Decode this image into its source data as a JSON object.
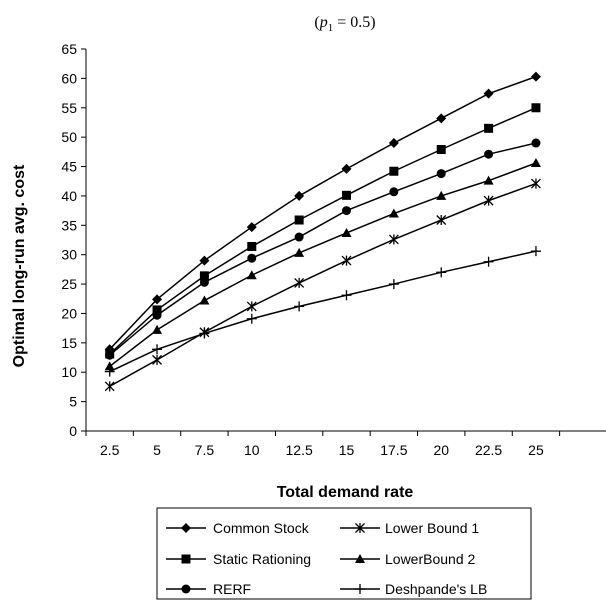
{
  "chart_data": {
    "type": "line",
    "title": "(p1 = 0.5)",
    "xlabel": "Total demand rate",
    "ylabel": "Optimal long-run avg. cost",
    "categories": [
      "2.5",
      "5",
      "7.5",
      "10",
      "12.5",
      "15",
      "17.5",
      "20",
      "22.5",
      "25"
    ],
    "ylim": [
      0,
      65
    ],
    "yticks": [
      0,
      5,
      10,
      15,
      20,
      25,
      30,
      35,
      40,
      45,
      50,
      55,
      60,
      65
    ],
    "grid": false,
    "legend_position": "bottom",
    "series": [
      {
        "name": "Common Stock",
        "marker": "diamond",
        "values": [
          13.9,
          22.4,
          29.0,
          34.7,
          40.0,
          44.6,
          49.0,
          53.2,
          57.4,
          60.3
        ]
      },
      {
        "name": "Lower Bound 1",
        "marker": "asterisk",
        "values": [
          7.6,
          12.1,
          16.8,
          21.2,
          25.2,
          29.0,
          32.6,
          35.9,
          39.2,
          42.1
        ]
      },
      {
        "name": "Static Rationing",
        "marker": "square",
        "values": [
          13.1,
          20.6,
          26.4,
          31.4,
          35.9,
          40.1,
          44.2,
          47.9,
          51.5,
          55.0
        ]
      },
      {
        "name": "LowerBound 2",
        "marker": "triangle",
        "values": [
          11.0,
          17.2,
          22.2,
          26.5,
          30.3,
          33.7,
          37.0,
          40.0,
          42.6,
          45.6
        ]
      },
      {
        "name": "RERF",
        "marker": "circle",
        "values": [
          12.9,
          19.7,
          25.3,
          29.4,
          33.0,
          37.5,
          40.7,
          43.8,
          47.1,
          49.0
        ]
      },
      {
        "name": "Deshpande's LB",
        "marker": "plus",
        "values": [
          10.1,
          13.9,
          16.6,
          19.1,
          21.2,
          23.1,
          25.0,
          27.0,
          28.8,
          30.6
        ]
      }
    ]
  }
}
